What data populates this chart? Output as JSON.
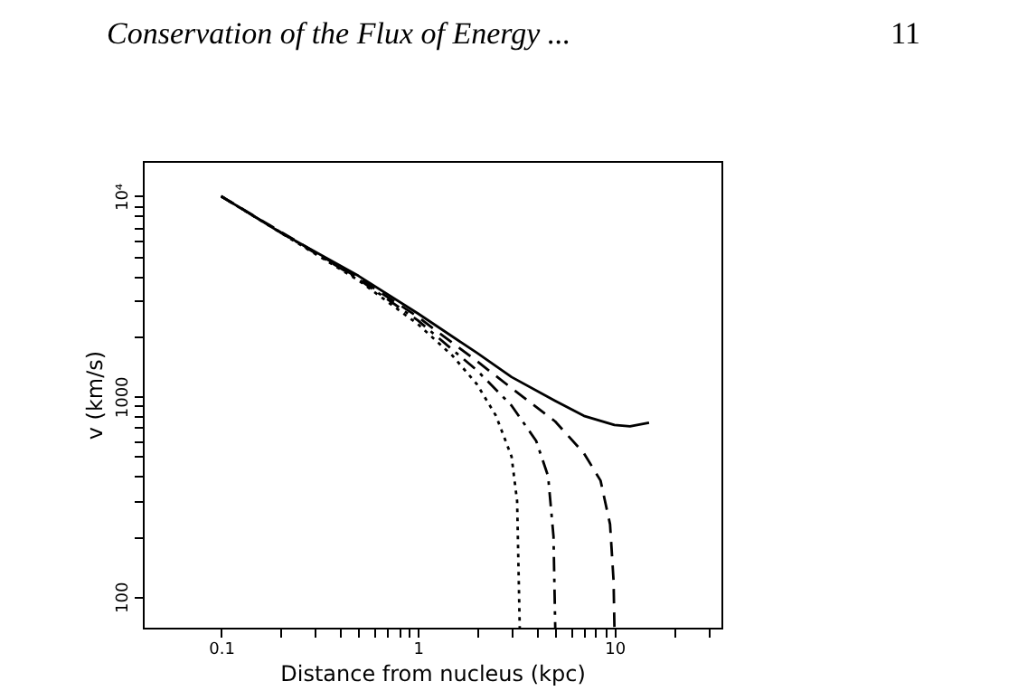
{
  "chart_data": {
    "type": "line",
    "title": "Conservation of the Flux of Energy ...",
    "annotations": [
      "11"
    ],
    "xlabel": "Distance from nucleus (kpc)",
    "ylabel": "v (km/s)",
    "log": "xy",
    "grid": false,
    "legend": false,
    "marker": "none",
    "xlim": [
      0.04,
      35
    ],
    "ylim": [
      70,
      15000
    ],
    "xticks": [
      {
        "value": 0.1,
        "label": "0.1"
      },
      {
        "value": 0.2,
        "label": null
      },
      {
        "value": 0.3,
        "label": null
      },
      {
        "value": 0.4,
        "label": null
      },
      {
        "value": 0.5,
        "label": null
      },
      {
        "value": 0.6,
        "label": null
      },
      {
        "value": 0.7,
        "label": null
      },
      {
        "value": 0.8,
        "label": null
      },
      {
        "value": 0.9,
        "label": null
      },
      1,
      {
        "value": 2,
        "label": null
      },
      {
        "value": 3,
        "label": null
      },
      {
        "value": 4,
        "label": null
      },
      {
        "value": 5,
        "label": null
      },
      {
        "value": 6,
        "label": null
      },
      {
        "value": 7,
        "label": null
      },
      {
        "value": 8,
        "label": null
      },
      {
        "value": 9,
        "label": null
      },
      10,
      {
        "value": 20,
        "label": null
      },
      {
        "value": 30,
        "label": null
      }
    ],
    "yticks": [
      100,
      {
        "value": 200,
        "label": null
      },
      {
        "value": 300,
        "label": null
      },
      {
        "value": 400,
        "label": null
      },
      {
        "value": 500,
        "label": null
      },
      {
        "value": 600,
        "label": null
      },
      {
        "value": 700,
        "label": null
      },
      {
        "value": 800,
        "label": null
      },
      {
        "value": 900,
        "label": null
      },
      1000,
      {
        "value": 2000,
        "label": null
      },
      {
        "value": 3000,
        "label": null
      },
      {
        "value": 4000,
        "label": null
      },
      {
        "value": 5000,
        "label": null
      },
      {
        "value": 6000,
        "label": null
      },
      {
        "value": 7000,
        "label": null
      },
      {
        "value": 8000,
        "label": null
      },
      {
        "value": 9000,
        "label": null
      },
      {
        "value": 10000,
        "label": "10⁴"
      }
    ],
    "series": [
      {
        "color": "#000000",
        "line_style": "solid",
        "x": [
          0.1,
          0.2,
          0.5,
          1,
          2,
          3,
          5,
          7,
          10,
          12,
          15
        ],
        "values": [
          10000,
          6600,
          4000,
          2600,
          1650,
          1250,
          950,
          800,
          720,
          710,
          740
        ]
      },
      {
        "color": "#000000",
        "line_style": "dashed",
        "x": [
          0.1,
          0.5,
          1,
          2,
          3,
          5,
          7,
          8.5,
          9.5,
          9.9,
          10
        ],
        "values": [
          10000,
          3900,
          2500,
          1500,
          1100,
          750,
          520,
          380,
          230,
          120,
          70
        ]
      },
      {
        "color": "#000000",
        "line_style": "dashdot",
        "x": [
          0.1,
          0.5,
          1,
          2,
          3,
          4,
          4.6,
          4.9,
          5
        ],
        "values": [
          10000,
          3850,
          2400,
          1350,
          900,
          600,
          400,
          200,
          70
        ]
      },
      {
        "color": "#000000",
        "line_style": "dotted",
        "x": [
          0.1,
          0.5,
          1,
          1.5,
          2,
          2.5,
          3,
          3.2,
          3.3
        ],
        "values": [
          10000,
          3800,
          2300,
          1600,
          1150,
          800,
          500,
          300,
          70
        ]
      }
    ]
  }
}
